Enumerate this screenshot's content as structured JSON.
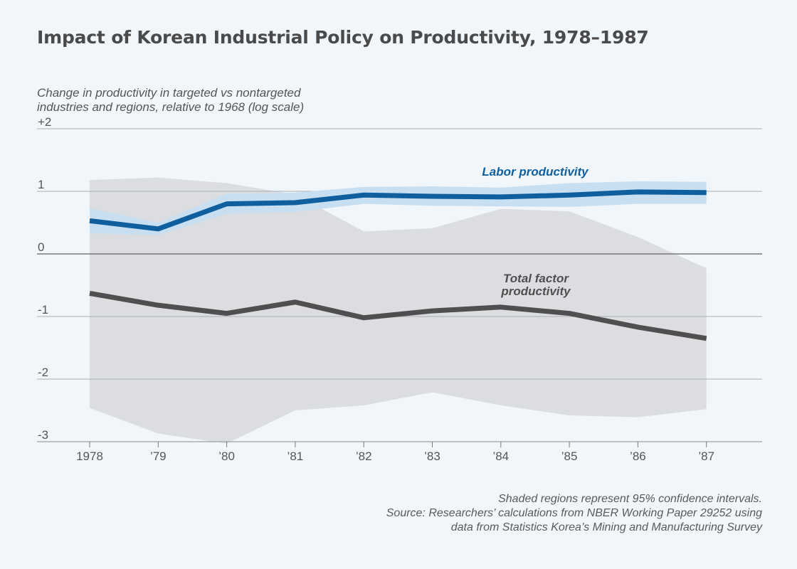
{
  "title": "Impact of Korean Industrial Policy on Productivity, 1978–1987",
  "ylabel_lines": [
    "Change in productivity in targeted vs nontargeted",
    "industries and regions, relative to 1968 (log scale)"
  ],
  "source_lines": [
    "Shaded regions represent 95% confidence intervals.",
    "Source: Researchers’ calculations from NBER Working Paper 29252 using",
    "data from Statistics Korea’s Mining and Manufacturing Survey"
  ],
  "chart_data": {
    "type": "line",
    "x": [
      "1978",
      "’79",
      "’80",
      "’81",
      "’82",
      "’83",
      "’84",
      "’85",
      "’86",
      "’87"
    ],
    "ylim": [
      -3,
      2
    ],
    "yticks": [
      2,
      1,
      0,
      -1,
      -2,
      -3
    ],
    "ytick_labels": [
      "+2",
      "1",
      "0",
      "-1",
      "-2",
      "-3"
    ],
    "grid": true,
    "series": [
      {
        "name": "Total factor productivity",
        "values": [
          -0.63,
          -0.82,
          -0.95,
          -0.77,
          -1.02,
          -0.91,
          -0.85,
          -0.95,
          -1.17,
          -1.35
        ],
        "ci_upper": [
          1.18,
          1.22,
          1.13,
          0.95,
          0.36,
          0.41,
          0.72,
          0.68,
          0.27,
          -0.23
        ],
        "ci_lower": [
          -2.46,
          -2.87,
          -3.03,
          -2.5,
          -2.42,
          -2.21,
          -2.42,
          -2.58,
          -2.61,
          -2.48
        ],
        "color": "#4f4f4f",
        "band_color": "#dcdde0"
      },
      {
        "name": "Labor productivity",
        "values": [
          0.53,
          0.4,
          0.8,
          0.82,
          0.94,
          0.92,
          0.91,
          0.94,
          0.99,
          0.98
        ],
        "ci_upper": [
          0.73,
          0.5,
          0.96,
          0.98,
          1.07,
          1.08,
          1.06,
          1.13,
          1.16,
          1.15
        ],
        "ci_lower": [
          0.33,
          0.3,
          0.64,
          0.67,
          0.8,
          0.77,
          0.76,
          0.75,
          0.8,
          0.8
        ],
        "color": "#0f5f9e",
        "band_color": "#c8dff1"
      }
    ]
  }
}
